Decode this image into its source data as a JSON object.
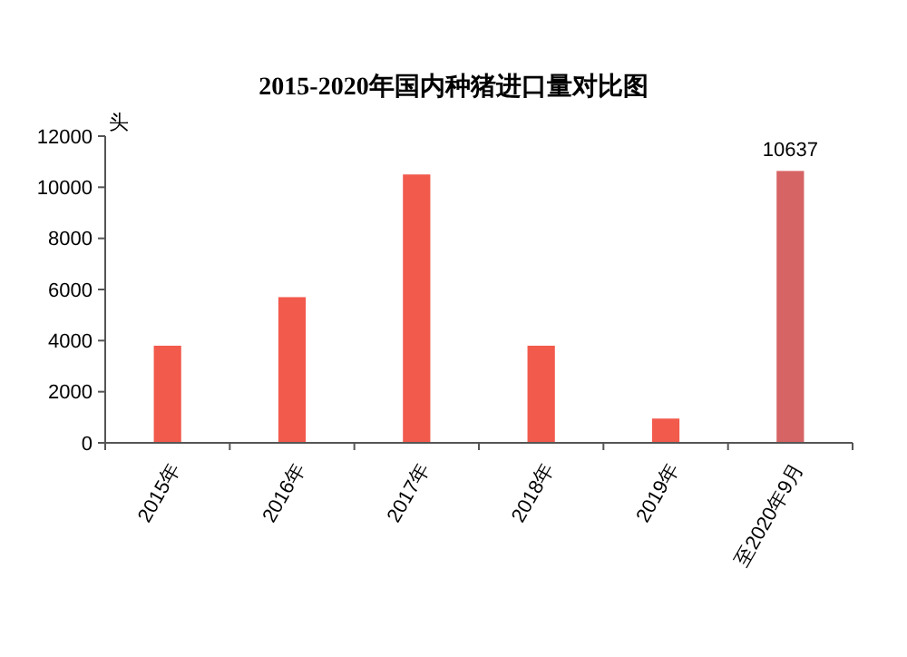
{
  "chart_data": {
    "type": "bar",
    "title": "2015-2020年国内种猪进口量对比图",
    "ylabel": "头",
    "categories": [
      "2015年",
      "2016年",
      "2017年",
      "2018年",
      "2019年",
      "至2020年9月"
    ],
    "values": [
      3800,
      5700,
      10500,
      3800,
      950,
      10637
    ],
    "colors": [
      "#f25a4c",
      "#f25a4c",
      "#f25a4c",
      "#f25a4c",
      "#f25a4c",
      "#d66464"
    ],
    "value_labels": [
      null,
      null,
      null,
      null,
      null,
      "10637"
    ],
    "ylim": [
      0,
      12000
    ],
    "yticks": [
      0,
      2000,
      4000,
      6000,
      8000,
      10000,
      12000
    ],
    "grid": false
  }
}
